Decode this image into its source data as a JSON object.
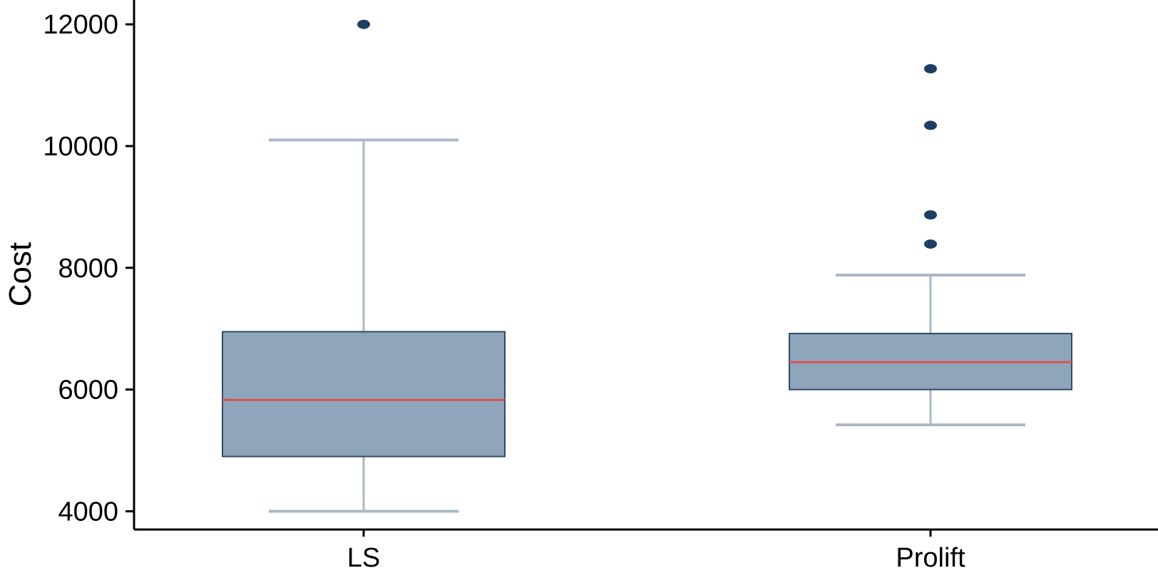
{
  "chart_data": {
    "type": "box",
    "title": "",
    "xlabel": "",
    "ylabel": "Cost",
    "ylim": [
      3700,
      12400
    ],
    "yticks": [
      4000,
      6000,
      8000,
      10000,
      12000
    ],
    "ytick_labels": [
      "4000",
      "6000",
      "8000",
      "10000",
      "12000"
    ],
    "categories": [
      "LS",
      "Prolift"
    ],
    "grid": false,
    "legend": "none",
    "colors": {
      "box_fill": "#8fa5bb",
      "box_stroke": "#2f4a66",
      "median": "#d9534f",
      "whisker": "#aab8c8",
      "outlier": "#1e3f63",
      "axis": "#000000"
    },
    "series": [
      {
        "category": "LS",
        "whisker_low": 4000,
        "q1": 4900,
        "median": 5830,
        "q3": 6950,
        "whisker_high": 10100,
        "outliers": [
          12000
        ]
      },
      {
        "category": "Prolift",
        "whisker_low": 5420,
        "q1": 6000,
        "median": 6450,
        "q3": 6920,
        "whisker_high": 7880,
        "outliers": [
          8390,
          8870,
          10340,
          11270
        ]
      }
    ]
  }
}
